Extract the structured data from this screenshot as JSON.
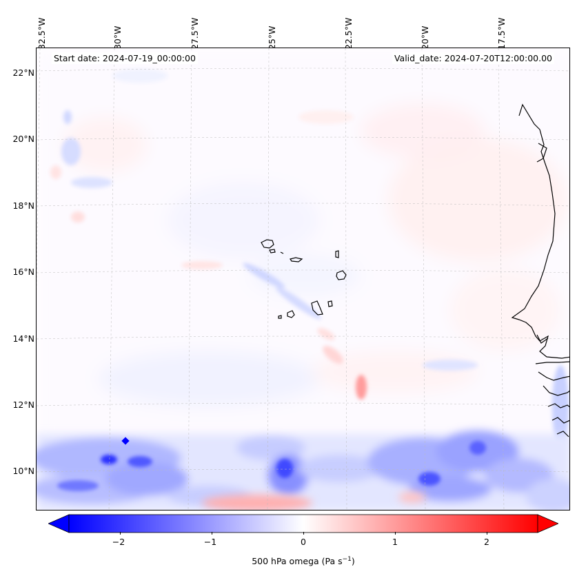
{
  "map": {
    "longitude_labels": [
      "32.5°W",
      "30°W",
      "27.5°W",
      "25°W",
      "22.5°W",
      "20°W",
      "17.5°W"
    ],
    "latitude_labels": [
      "22°N",
      "20°N",
      "18°N",
      "16°N",
      "14°N",
      "12°N",
      "10°N"
    ],
    "start_date_text": "Start date: 2024-07-19_00:00:00",
    "valid_date_text": "Valid_date: 2024-07-20T12:00:00.00",
    "field": "500 hPa omega",
    "region": "Eastern tropical Atlantic / Cape Verde / West African coast",
    "features": [
      "Cape Verde islands",
      "West African coastline",
      "ITCZ ascent band (negative omega) near 9-12°N"
    ]
  },
  "colorbar": {
    "label_main": "500 hPa omega (Pa s",
    "label_exp": "−1",
    "label_close": ")",
    "ticks": [
      "−2",
      "−1",
      "0",
      "1",
      "2"
    ],
    "range": [
      -2.7,
      2.7
    ],
    "min_color": "#0000ff",
    "mid_color": "#ffffff",
    "max_color": "#ff0000",
    "extend": "both"
  }
}
